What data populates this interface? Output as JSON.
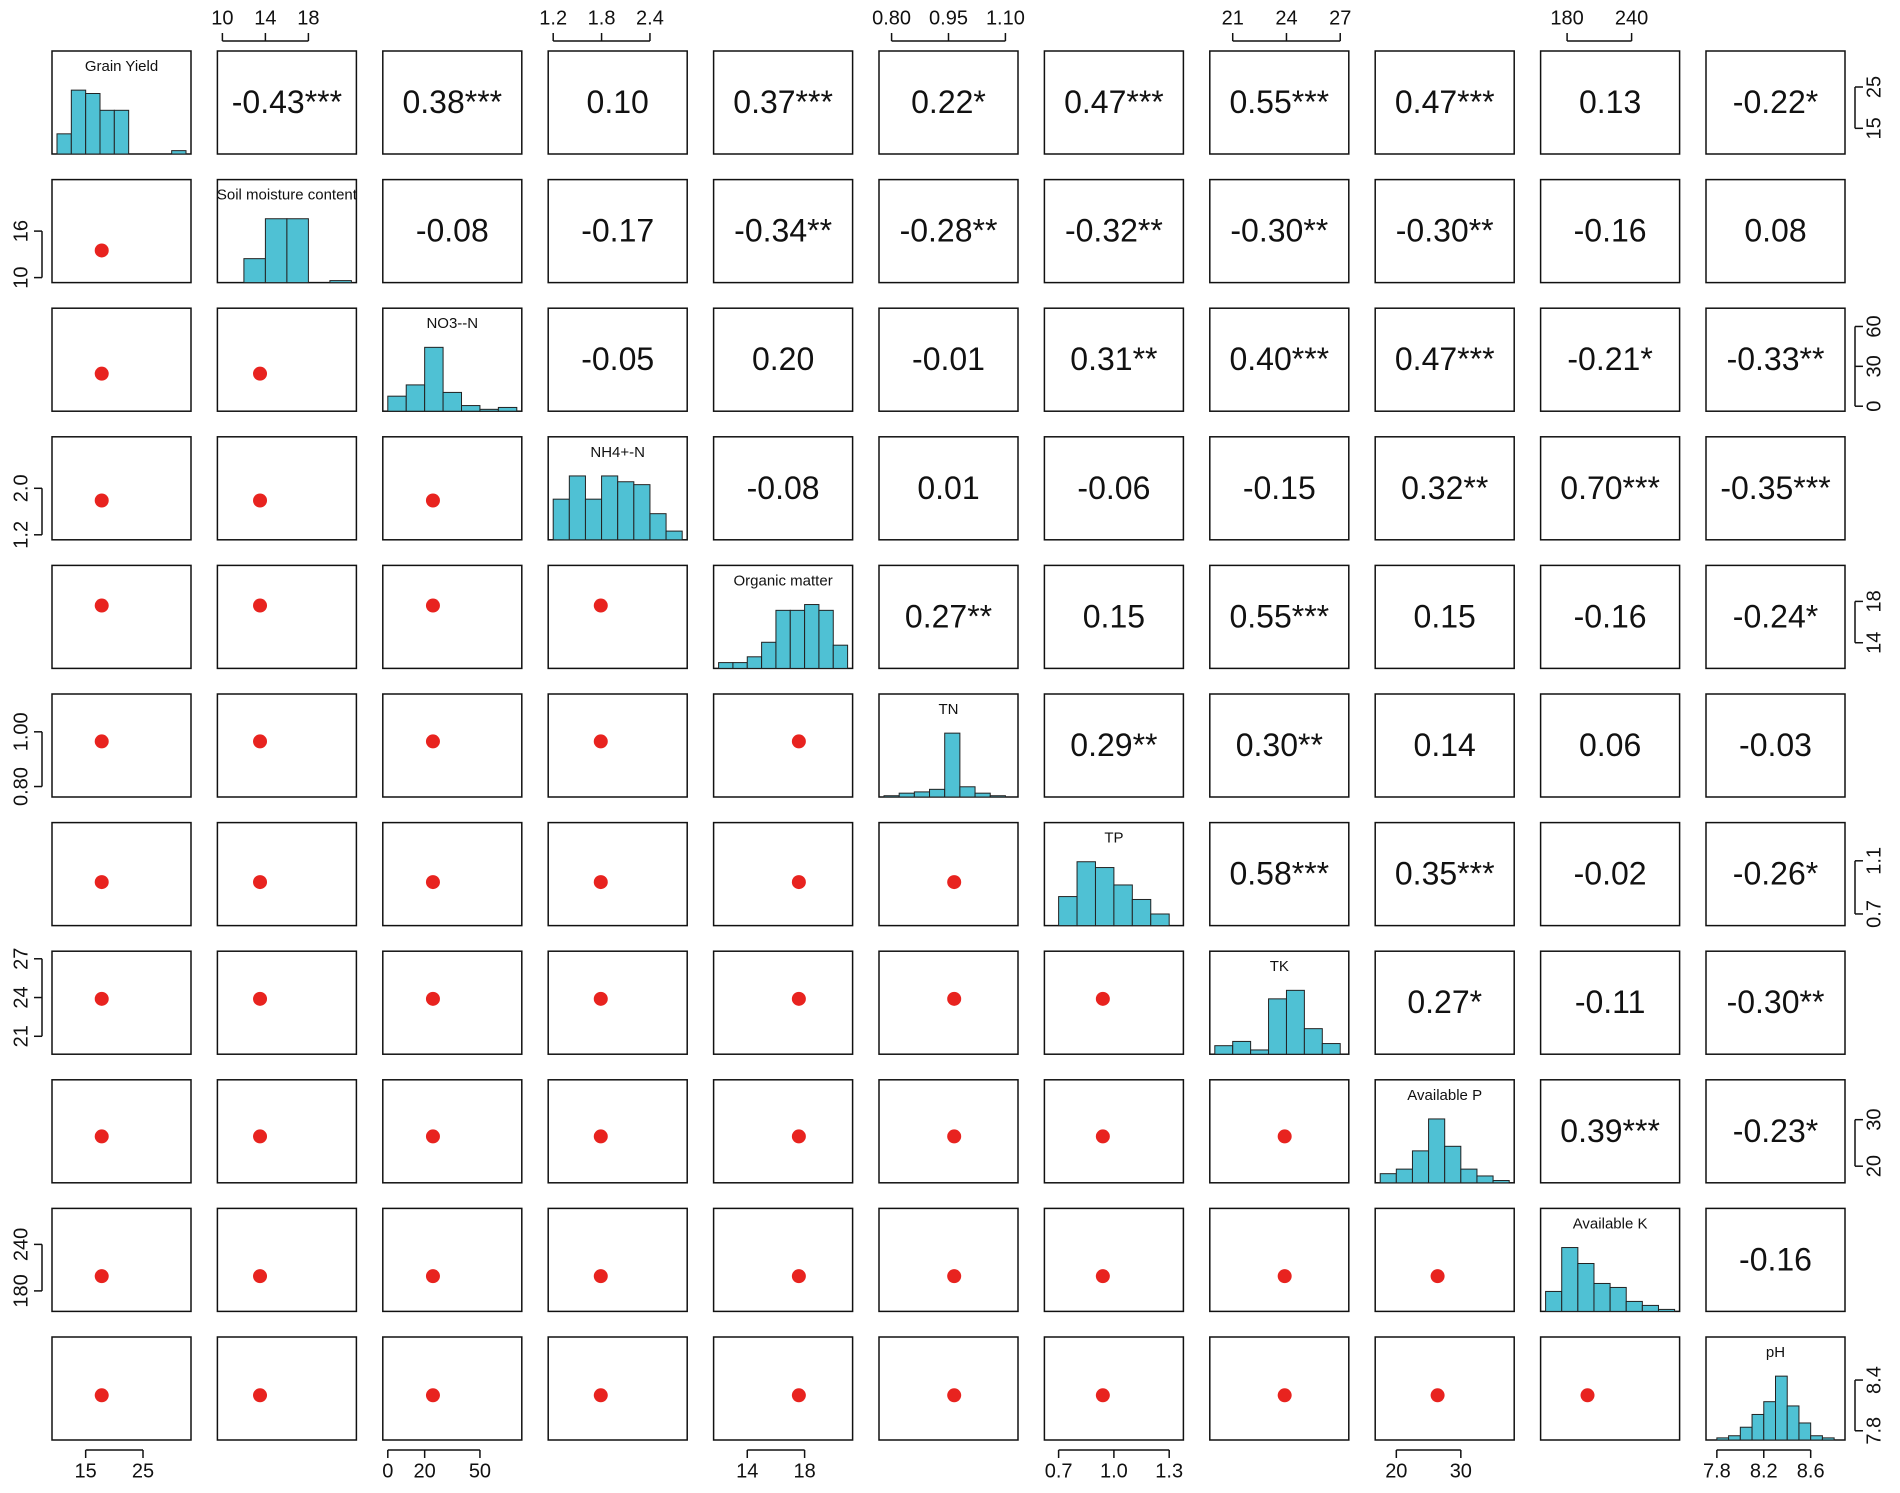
{
  "chart_data": {
    "type": "pairs",
    "bar_color": "#4fc1d4",
    "mean_color": "#e8231f",
    "variables": [
      {
        "name": "Grain Yield",
        "lim": [
          10,
          32.5
        ],
        "bins": [
          10,
          12.5,
          15,
          17.5,
          20,
          22.5,
          25,
          27.5,
          30,
          32.5
        ],
        "counts": [
          6,
          19,
          18,
          13,
          13,
          0,
          0,
          0,
          1
        ],
        "mean": 17.8,
        "xticks": [
          15,
          25
        ],
        "yticks": [
          15,
          25
        ]
      },
      {
        "name": "Soil moisture content",
        "lim": [
          10,
          22
        ],
        "bins": [
          10,
          12,
          14,
          16,
          18,
          20,
          22
        ],
        "counts": [
          0,
          12,
          32,
          32,
          0,
          1
        ],
        "mean": 13.5,
        "xticks": [
          10,
          14,
          18
        ],
        "yticks": [
          10,
          16
        ]
      },
      {
        "name": "NO3--N",
        "lim": [
          0,
          70
        ],
        "bins": [
          0,
          10,
          20,
          30,
          40,
          50,
          60,
          70
        ],
        "counts": [
          8,
          14,
          34,
          10,
          3,
          1,
          2
        ],
        "mean": 24.5,
        "xticks": [
          0,
          20,
          50
        ],
        "yticks": [
          0,
          30,
          60
        ]
      },
      {
        "name": "NH4+-N",
        "lim": [
          1.2,
          2.8
        ],
        "bins": [
          1.2,
          1.4,
          1.6,
          1.8,
          2.0,
          2.2,
          2.4,
          2.6,
          2.8
        ],
        "counts": [
          14,
          22,
          14,
          22,
          20,
          19,
          9,
          3
        ],
        "mean": 1.79,
        "xticks": [
          1.2,
          1.8,
          2.4
        ],
        "yticks": [
          1.2,
          {
            "value": 2,
            "label": "2.0"
          }
        ]
      },
      {
        "name": "Organic matter",
        "lim": [
          12,
          21
        ],
        "bins": [
          12,
          13,
          14,
          15,
          16,
          17,
          18,
          19,
          20,
          21
        ],
        "counts": [
          2,
          2,
          4,
          9,
          20,
          20,
          22,
          20,
          8
        ],
        "mean": 17.6,
        "xticks": [
          14,
          18
        ],
        "yticks": [
          14,
          18
        ]
      },
      {
        "name": "TN",
        "lim": [
          0.78,
          1.12
        ],
        "bins": [
          0.78,
          0.82,
          0.86,
          0.9,
          0.94,
          0.98,
          1.02,
          1.06,
          1.1
        ],
        "counts": [
          1,
          3,
          4,
          6,
          50,
          8,
          3,
          1
        ],
        "mean": 0.965,
        "xticks": [
          {
            "value": 0.8,
            "label": "0.80"
          },
          0.95,
          {
            "value": 1.1,
            "label": "1.10"
          }
        ],
        "yticks": [
          {
            "value": 0.8,
            "label": "0.80"
          },
          {
            "value": 1,
            "label": "1.00"
          }
        ]
      },
      {
        "name": "TP",
        "lim": [
          0.65,
          1.35
        ],
        "bins": [
          0.7,
          0.8,
          0.9,
          1.0,
          1.1,
          1.2,
          1.3
        ],
        "counts": [
          10,
          22,
          20,
          14,
          9,
          4
        ],
        "mean": 0.94,
        "xticks": [
          0.7,
          {
            "value": 1,
            "label": "1.0"
          },
          1.3
        ],
        "yticks": [
          0.7,
          1.1
        ]
      },
      {
        "name": "TK",
        "lim": [
          20,
          27.2
        ],
        "bins": [
          20,
          21,
          22,
          23,
          24,
          25,
          26,
          27
        ],
        "counts": [
          4,
          6,
          2,
          26,
          30,
          12,
          5
        ],
        "mean": 23.9,
        "xticks": [
          21,
          24,
          27
        ],
        "yticks": [
          21,
          24,
          27
        ]
      },
      {
        "name": "Available P",
        "lim": [
          17.5,
          37.5
        ],
        "bins": [
          17.5,
          20,
          22.5,
          25,
          27.5,
          30,
          32.5,
          35,
          37.5
        ],
        "counts": [
          4,
          6,
          14,
          28,
          16,
          6,
          3,
          1
        ],
        "mean": 26.4,
        "xticks": [
          20,
          30
        ],
        "yticks": [
          20,
          30
        ]
      },
      {
        "name": "Available K",
        "lim": [
          160,
          280
        ],
        "bins": [
          160,
          175,
          190,
          205,
          220,
          235,
          250,
          265,
          280
        ],
        "counts": [
          10,
          32,
          24,
          14,
          12,
          5,
          3,
          1
        ],
        "mean": 199,
        "xticks": [
          180,
          240
        ],
        "yticks": [
          180,
          240
        ]
      },
      {
        "name": "pH",
        "lim": [
          7.75,
          8.85
        ],
        "bins": [
          7.8,
          7.9,
          8.0,
          8.1,
          8.2,
          8.3,
          8.4,
          8.5,
          8.6,
          8.7,
          8.8
        ],
        "counts": [
          1,
          2,
          6,
          12,
          18,
          30,
          16,
          8,
          2,
          1
        ],
        "mean": 8.22,
        "xticks": [
          7.8,
          8.2,
          8.6
        ],
        "yticks": [
          7.8,
          8.4
        ]
      }
    ],
    "correlations": [
      [
        "-0.43***",
        "0.38***",
        "0.10",
        "0.37***",
        "0.22*",
        "0.47***",
        "0.55***",
        "0.47***",
        "0.13",
        "-0.22*"
      ],
      [
        "-0.08",
        "-0.17",
        "-0.34**",
        "-0.28**",
        "-0.32**",
        "-0.30**",
        "-0.30**",
        "-0.16",
        "0.08"
      ],
      [
        "-0.05",
        "0.20",
        "-0.01",
        "0.31**",
        "0.40***",
        "0.47***",
        "-0.21*",
        "-0.33**"
      ],
      [
        "-0.08",
        "0.01",
        "-0.06",
        "-0.15",
        "0.32**",
        "0.70***",
        "-0.35***"
      ],
      [
        "0.27**",
        "0.15",
        "0.55***",
        "0.15",
        "-0.16",
        "-0.24*"
      ],
      [
        "0.29**",
        "0.30**",
        "0.14",
        "0.06",
        "-0.03"
      ],
      [
        "0.58***",
        "0.35***",
        "-0.02",
        "-0.26*"
      ],
      [
        "0.27*",
        "-0.11",
        "-0.30**"
      ],
      [
        "0.39***",
        "-0.23*"
      ],
      [
        "-0.16"
      ]
    ]
  }
}
